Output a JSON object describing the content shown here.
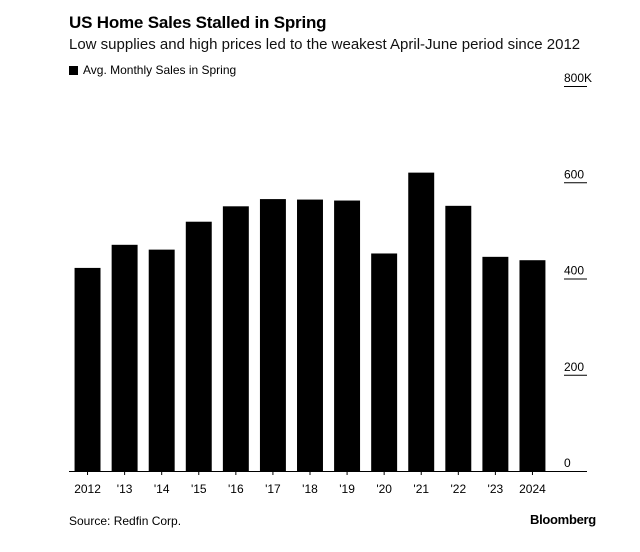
{
  "header": {
    "title": "US Home Sales Stalled in Spring",
    "subtitle": "Low supplies and high prices led to the weakest April-June period since 2012"
  },
  "legend": {
    "label": "Avg. Monthly Sales in Spring",
    "color": "#000000"
  },
  "footer": {
    "source": "Source: Redfin Corp.",
    "brand": "Bloomberg"
  },
  "chart_data": {
    "type": "bar",
    "categories": [
      "2012",
      "'13",
      "'14",
      "'15",
      "'16",
      "'17",
      "'18",
      "'19",
      "'20",
      "'21",
      "'22",
      "'23",
      "2024"
    ],
    "series": [
      {
        "name": "Avg. Monthly Sales in Spring",
        "values": [
          422,
          470,
          460,
          518,
          550,
          565,
          564,
          562,
          452,
          620,
          551,
          445,
          438
        ]
      }
    ],
    "y_ticks": [
      {
        "value": 0,
        "label": "0"
      },
      {
        "value": 200,
        "label": "200"
      },
      {
        "value": 400,
        "label": "400"
      },
      {
        "value": 600,
        "label": "600"
      },
      {
        "value": 800,
        "label": "800K"
      }
    ],
    "ylim": [
      0,
      800
    ],
    "y_axis_side": "right",
    "grid": false,
    "bar_color": "#000000"
  }
}
